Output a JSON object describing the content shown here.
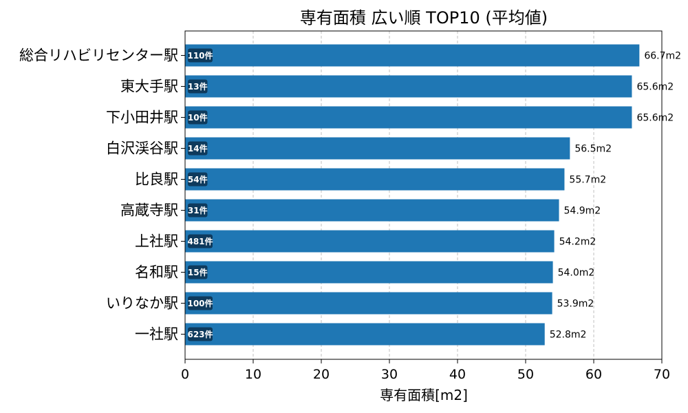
{
  "chart_data": {
    "type": "bar",
    "orientation": "horizontal",
    "title": "専有面積 広い順 TOP10 (平均値)",
    "xlabel": "専有面積[m2]",
    "ylabel": "",
    "xlim": [
      0,
      70
    ],
    "xticks": [
      "0",
      "10",
      "20",
      "30",
      "40",
      "50",
      "60",
      "70"
    ],
    "grid": "x-dashed",
    "categories": [
      "総合リハビリセンター駅",
      "東大手駅",
      "下小田井駅",
      "白沢渓谷駅",
      "比良駅",
      "高蔵寺駅",
      "上社駅",
      "名和駅",
      "いりなか駅",
      "一社駅"
    ],
    "values": [
      66.7,
      65.6,
      65.6,
      56.5,
      55.7,
      54.9,
      54.2,
      54.0,
      53.9,
      52.8
    ],
    "value_labels": [
      "66.7m2",
      "65.6m2",
      "65.6m2",
      "56.5m2",
      "55.7m2",
      "54.9m2",
      "54.2m2",
      "54.0m2",
      "53.9m2",
      "52.8m2"
    ],
    "counts": [
      "110件",
      "13件",
      "10件",
      "14件",
      "54件",
      "31件",
      "481件",
      "15件",
      "100件",
      "623件"
    ],
    "bar_color": "#1f77b4",
    "count_badge_color": "#0e3a5c"
  }
}
